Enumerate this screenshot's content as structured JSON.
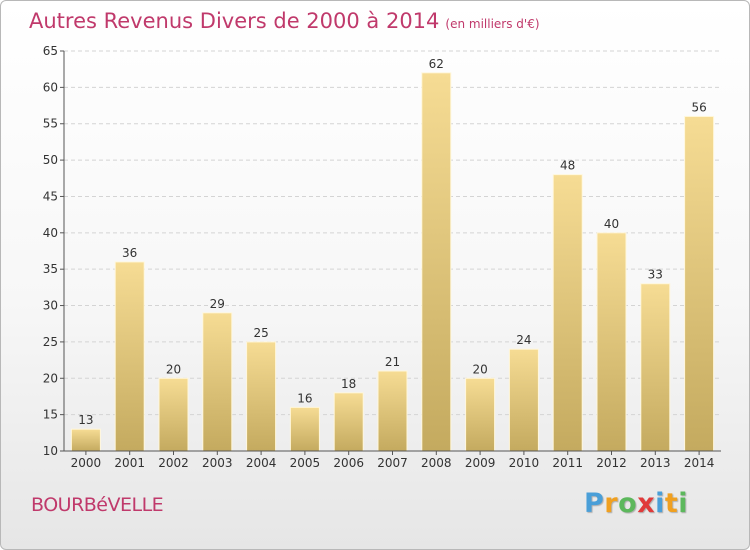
{
  "chart_data": {
    "type": "bar",
    "title": "Autres Revenus Divers de 2000 à 2014",
    "subtitle": "(en milliers d'€)",
    "categories": [
      "2000",
      "2001",
      "2002",
      "2003",
      "2004",
      "2005",
      "2006",
      "2007",
      "2008",
      "2009",
      "2010",
      "2011",
      "2012",
      "2013",
      "2014"
    ],
    "values": [
      13,
      36,
      20,
      29,
      25,
      16,
      18,
      21,
      62,
      20,
      24,
      48,
      40,
      33,
      56
    ],
    "ylim": [
      10,
      65
    ],
    "yticks": [
      10,
      15,
      20,
      25,
      30,
      35,
      40,
      45,
      50,
      55,
      60,
      65
    ],
    "grid": true,
    "bar_color": "#e8c97a"
  },
  "footer": {
    "commune": "BOURBéVELLE",
    "brand": [
      "P",
      "r",
      "o",
      "x",
      "i",
      "t",
      "i"
    ]
  },
  "colors": {
    "title": "#c0396b",
    "brand_letters": [
      "#4a9fd8",
      "#f0a020",
      "#5cb85c",
      "#e03a3a",
      "#4a9fd8",
      "#f0a020",
      "#5cb85c"
    ]
  }
}
